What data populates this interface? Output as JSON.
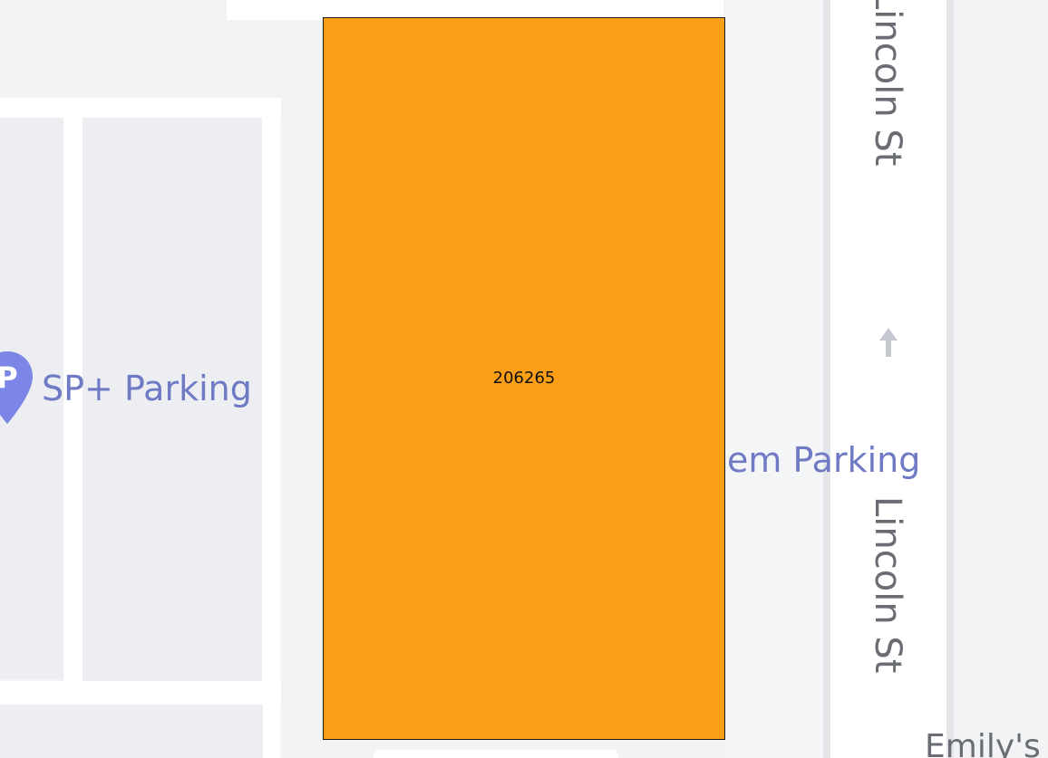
{
  "colors": {
    "background": "#f2f3f5",
    "block": "#eceef1",
    "road": "#ffffff",
    "parcel": "#fb9f17",
    "poi": "#7b86e6",
    "label": "#6f7ac5",
    "street": "#6a6d74",
    "arrow": "#c4c8cf"
  },
  "parcel": {
    "id": "206265"
  },
  "pois": [
    {
      "name": "SP+ Parking",
      "icon": "parking-pin-icon",
      "glyph": "P"
    },
    {
      "name": "em Parking"
    }
  ],
  "streets": [
    {
      "name": "Lincoln St"
    },
    {
      "name": "Lincoln St"
    }
  ],
  "partial_labels": [
    {
      "text": "Emily's"
    }
  ],
  "oneway_arrow_icon": "arrow-up-icon"
}
